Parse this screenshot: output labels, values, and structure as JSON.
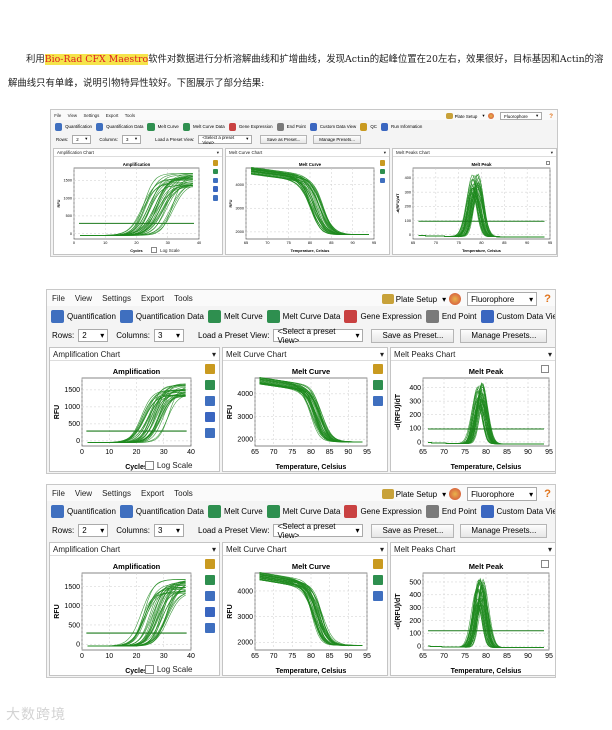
{
  "intro": {
    "prefix": "利用",
    "software": "Bio-Rad CFX Maestro",
    "rest": "软件对数据进行分析溶解曲线和扩增曲线，发现Actin的起峰位置在20左右，效果很好，目标基因和Actin的溶解曲线只有单峰，说明引物特异性较好。下图展示了部分结果:"
  },
  "menu": [
    "File",
    "View",
    "Settings",
    "Export",
    "Tools"
  ],
  "toolbar": [
    "Quantification",
    "Quantification Data",
    "Melt Curve",
    "Melt Curve Data",
    "Gene Expression",
    "End Point",
    "Custom Data View",
    "QC",
    "Run Information"
  ],
  "plate_setup": "Plate Setup",
  "fluorophore": "Fluorophore",
  "help": "?",
  "options": {
    "rows_label": "Rows:",
    "rows_value": "2",
    "cols_label": "Columns:",
    "cols_value": "3",
    "preset_label": "Load a Preset View:",
    "preset_value": "<Select a preset View>",
    "save_preset": "Save as Preset...",
    "manage_presets": "Manage Presets..."
  },
  "panel_headers": [
    "Amplification Chart",
    "Melt Curve Chart",
    "Melt Peaks Chart"
  ],
  "log_scale": "Log Scale",
  "colors": {
    "curve": "#1f8a1f",
    "threshold": "#1b7a1b",
    "accent": "#e0731b"
  },
  "watermark": "大数跨境",
  "screenshots": [
    {
      "amplification": {
        "title": "Amplification",
        "ylabel": "RFU",
        "xlabel": "Cycles",
        "yticks": [
          "0",
          "500",
          "1000",
          "1500"
        ],
        "xticks": [
          "0",
          "10",
          "20",
          "30",
          "40"
        ]
      },
      "melt_curve": {
        "title": "Melt Curve",
        "ylabel": "RFU",
        "xlabel": "Temperature, Celsius",
        "yticks": [
          "2000",
          "3000",
          "4000"
        ],
        "xticks": [
          "65",
          "70",
          "75",
          "80",
          "85",
          "90",
          "95"
        ]
      },
      "melt_peak": {
        "title": "Melt Peak",
        "ylabel": "-d(RFU)/dT",
        "xlabel": "Temperature, Celsius",
        "yticks": [
          "0",
          "100",
          "200",
          "300",
          "400"
        ],
        "xticks": [
          "65",
          "70",
          "75",
          "80",
          "85",
          "90",
          "95"
        ]
      }
    },
    {
      "amplification": {
        "title": "Amplification",
        "ylabel": "RFU",
        "xlabel": "Cycles",
        "yticks": [
          "0",
          "500",
          "1000",
          "1500"
        ],
        "xticks": [
          "0",
          "10",
          "20",
          "30",
          "40"
        ]
      },
      "melt_curve": {
        "title": "Melt Curve",
        "ylabel": "RFU",
        "xlabel": "Temperature, Celsius",
        "yticks": [
          "2000",
          "3000",
          "4000"
        ],
        "xticks": [
          "65",
          "70",
          "75",
          "80",
          "85",
          "90",
          "95"
        ]
      },
      "melt_peak": {
        "title": "Melt Peak",
        "ylabel": "-d(RFU)/dT",
        "xlabel": "Temperature, Celsius",
        "yticks": [
          "0",
          "100",
          "200",
          "300",
          "400"
        ],
        "xticks": [
          "65",
          "70",
          "75",
          "80",
          "85",
          "90",
          "95"
        ]
      }
    },
    {
      "amplification": {
        "title": "Amplification",
        "ylabel": "RFU",
        "xlabel": "Cycles",
        "yticks": [
          "0",
          "500",
          "1000",
          "1500"
        ],
        "xticks": [
          "0",
          "10",
          "20",
          "30",
          "40"
        ]
      },
      "melt_curve": {
        "title": "Melt Curve",
        "ylabel": "RFU",
        "xlabel": "Temperature, Celsius",
        "yticks": [
          "2000",
          "3000",
          "4000"
        ],
        "xticks": [
          "65",
          "70",
          "75",
          "80",
          "85",
          "90",
          "95"
        ]
      },
      "melt_peak": {
        "title": "Melt Peak",
        "ylabel": "-d(RFU)/dT",
        "xlabel": "Temperature, Celsius",
        "yticks": [
          "0",
          "100",
          "200",
          "300",
          "400",
          "500"
        ],
        "xticks": [
          "65",
          "70",
          "75",
          "80",
          "85",
          "90",
          "95"
        ]
      }
    }
  ]
}
